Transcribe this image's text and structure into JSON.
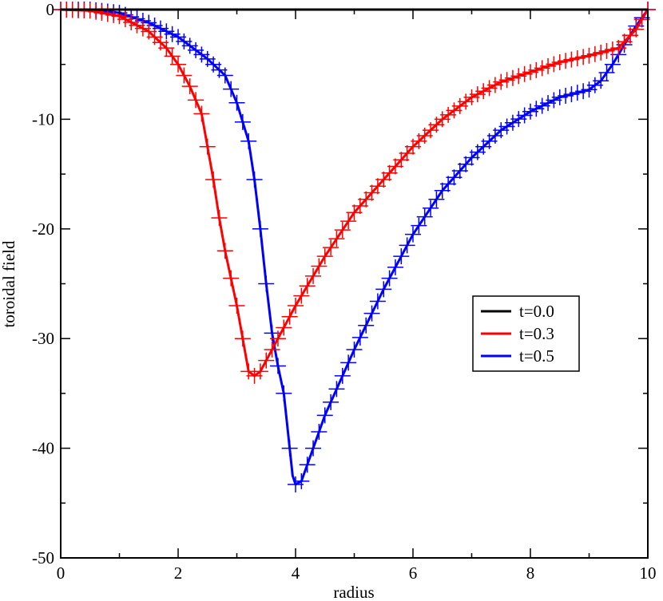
{
  "chart_data": {
    "type": "line",
    "xlabel": "radius",
    "ylabel": "toroidal field",
    "xlim": [
      0,
      10
    ],
    "ylim": [
      -50,
      0
    ],
    "x_ticks": [
      0,
      2,
      4,
      6,
      8,
      10
    ],
    "x_tick_labels": [
      "0",
      "2",
      "4",
      "6",
      "8",
      "10"
    ],
    "y_ticks": [
      0,
      -10,
      -20,
      -30,
      -40,
      -50
    ],
    "y_tick_labels": [
      "0",
      "-10",
      "-20",
      "-30",
      "-40",
      "-50"
    ],
    "grid": false,
    "legend_position": "right",
    "series": [
      {
        "name": "t=0.0",
        "color": "#000000",
        "marker": "none",
        "points": [
          [
            0,
            0
          ],
          [
            10,
            0
          ]
        ]
      },
      {
        "name": "t=0.3",
        "color": "#ff0000",
        "marker": "plus",
        "points": [
          [
            0,
            0
          ],
          [
            0.5,
            -0.1
          ],
          [
            1.0,
            -0.6
          ],
          [
            1.5,
            -2.0
          ],
          [
            1.8,
            -3.5
          ],
          [
            2.0,
            -5.0
          ],
          [
            2.2,
            -7.0
          ],
          [
            2.4,
            -9.5
          ],
          [
            2.5,
            -12.5
          ],
          [
            2.6,
            -15.5
          ],
          [
            2.7,
            -19.0
          ],
          [
            2.8,
            -22.0
          ],
          [
            2.9,
            -24.5
          ],
          [
            3.0,
            -27.0
          ],
          [
            3.1,
            -30.0
          ],
          [
            3.2,
            -33.0
          ],
          [
            3.3,
            -33.4
          ],
          [
            3.4,
            -33.0
          ],
          [
            3.5,
            -32.0
          ],
          [
            3.6,
            -31.0
          ],
          [
            3.7,
            -30.0
          ],
          [
            3.8,
            -29.0
          ],
          [
            4.0,
            -27.0
          ],
          [
            4.5,
            -22.5
          ],
          [
            5.0,
            -18.5
          ],
          [
            5.5,
            -15.5
          ],
          [
            6.0,
            -12.5
          ],
          [
            6.5,
            -10.0
          ],
          [
            7.0,
            -8.0
          ],
          [
            7.5,
            -6.6
          ],
          [
            8.0,
            -5.7
          ],
          [
            8.5,
            -4.8
          ],
          [
            9.0,
            -4.2
          ],
          [
            9.5,
            -3.5
          ],
          [
            9.8,
            -1.8
          ],
          [
            10.0,
            0
          ]
        ]
      },
      {
        "name": "t=0.5",
        "color": "#0000ff",
        "marker": "plus",
        "points": [
          [
            0,
            0
          ],
          [
            0.5,
            0
          ],
          [
            1.0,
            -0.3
          ],
          [
            1.5,
            -1.2
          ],
          [
            2.0,
            -2.5
          ],
          [
            2.5,
            -4.5
          ],
          [
            2.8,
            -6.0
          ],
          [
            3.0,
            -8.5
          ],
          [
            3.2,
            -12.0
          ],
          [
            3.3,
            -15.5
          ],
          [
            3.4,
            -20.0
          ],
          [
            3.5,
            -25.0
          ],
          [
            3.6,
            -29.5
          ],
          [
            3.7,
            -32.5
          ],
          [
            3.8,
            -35.0
          ],
          [
            3.85,
            -37.5
          ],
          [
            3.9,
            -40.0
          ],
          [
            3.95,
            -42.5
          ],
          [
            4.0,
            -43.3
          ],
          [
            4.1,
            -43.0
          ],
          [
            4.2,
            -41.5
          ],
          [
            4.5,
            -37.0
          ],
          [
            5.0,
            -31.0
          ],
          [
            5.5,
            -25.5
          ],
          [
            6.0,
            -20.5
          ],
          [
            6.5,
            -16.5
          ],
          [
            7.0,
            -13.5
          ],
          [
            7.5,
            -11.0
          ],
          [
            8.0,
            -9.3
          ],
          [
            8.5,
            -8.0
          ],
          [
            9.0,
            -7.3
          ],
          [
            9.2,
            -6.5
          ],
          [
            9.4,
            -5.0
          ],
          [
            9.6,
            -3.2
          ],
          [
            9.8,
            -1.5
          ],
          [
            10.0,
            0
          ]
        ]
      }
    ]
  }
}
